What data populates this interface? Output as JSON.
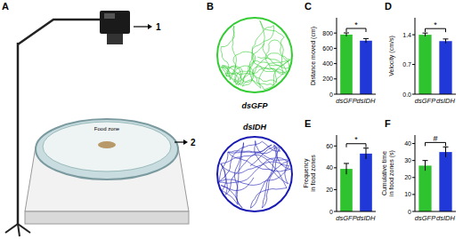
{
  "figure": {
    "panel_labels": [
      "A",
      "B"
    ],
    "apparatus": {
      "camera_label": "1",
      "arena_label": "2",
      "food_zone": "Food zone"
    },
    "tracks": [
      {
        "label": "dsGFP",
        "color": "#33cc33"
      },
      {
        "label": "dsIDH",
        "color": "#1a1ab4"
      }
    ]
  },
  "chart_data": [
    {
      "type": "bar",
      "title": "C",
      "categories": [
        "dsGFP",
        "dsIDH"
      ],
      "values": [
        780,
        700
      ],
      "errors": [
        22,
        28
      ],
      "colors": [
        "#2fc42f",
        "#2038d8"
      ],
      "y_label": [
        "Distance moved (cm)"
      ],
      "ylim": [
        0,
        1000
      ],
      "yticks": [
        0,
        200,
        400,
        600,
        800
      ],
      "annotation": "*"
    },
    {
      "type": "bar",
      "title": "D",
      "categories": [
        "dsGFP",
        "dsIDH"
      ],
      "values": [
        1.4,
        1.25
      ],
      "errors": [
        0.04,
        0.05
      ],
      "colors": [
        "#2fc42f",
        "#2038d8"
      ],
      "y_label": [
        "Velocity (cm/s)"
      ],
      "ylim": [
        0,
        1.8
      ],
      "yticks": [
        {
          "value": 0,
          "label": "0.0"
        },
        0.7,
        1.4
      ],
      "annotation": "*"
    },
    {
      "type": "bar",
      "title": "E",
      "categories": [
        "dsGFP",
        "dsIDH"
      ],
      "values": [
        39,
        53
      ],
      "errors": [
        5,
        5
      ],
      "colors": [
        "#2fc42f",
        "#2038d8"
      ],
      "y_label": [
        "Frequency",
        "in food zones"
      ],
      "ylim": [
        0,
        70
      ],
      "yticks": [
        0,
        20,
        40,
        60
      ],
      "annotation": "*"
    },
    {
      "type": "bar",
      "title": "F",
      "categories": [
        "dsGFP",
        "dsIDH"
      ],
      "values": [
        27,
        35
      ],
      "errors": [
        3,
        3
      ],
      "colors": [
        "#2fc42f",
        "#2038d8"
      ],
      "y_label": [
        "Cumulative time",
        "in food zones (s)"
      ],
      "ylim": [
        0,
        45
      ],
      "yticks": [
        0,
        10,
        20,
        30,
        40
      ],
      "annotation": "#"
    }
  ]
}
